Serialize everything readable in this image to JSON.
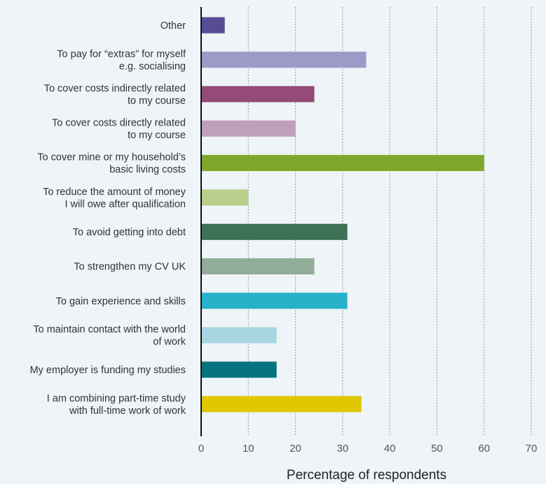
{
  "chart_data": {
    "type": "bar",
    "orientation": "horizontal",
    "title": "",
    "xlabel": "Percentage of respondents",
    "ylabel": "",
    "xlim": [
      0,
      70
    ],
    "xticks": [
      0,
      10,
      20,
      30,
      40,
      50,
      60,
      70
    ],
    "grid": "vertical dotted",
    "categories": [
      [
        "Other"
      ],
      [
        "To pay for “extras” for myself",
        "e.g. socialising"
      ],
      [
        "To cover costs indirectly related",
        "to my course"
      ],
      [
        "To cover costs directly related",
        "to my course"
      ],
      [
        "To cover mine or my household’s",
        "basic living costs"
      ],
      [
        "To reduce the amount of money",
        "I will owe after qualification"
      ],
      [
        "To avoid getting into debt"
      ],
      [
        "To strengthen my CV UK"
      ],
      [
        "To gain experience and skills"
      ],
      [
        "To maintain contact with the world",
        "of work"
      ],
      [
        "My employer is funding my studies"
      ],
      [
        "I am combining part-time study",
        "with full-time work of work"
      ]
    ],
    "values": [
      5,
      35,
      24,
      20,
      60,
      10,
      31,
      24,
      31,
      16,
      16,
      34
    ],
    "colors": [
      "#574b95",
      "#9e9ac8",
      "#944b77",
      "#c09fb8",
      "#7fa82a",
      "#b9d08d",
      "#3e7155",
      "#91ad98",
      "#27b2c9",
      "#a8d5e2",
      "#06737f",
      "#dfc800"
    ]
  }
}
